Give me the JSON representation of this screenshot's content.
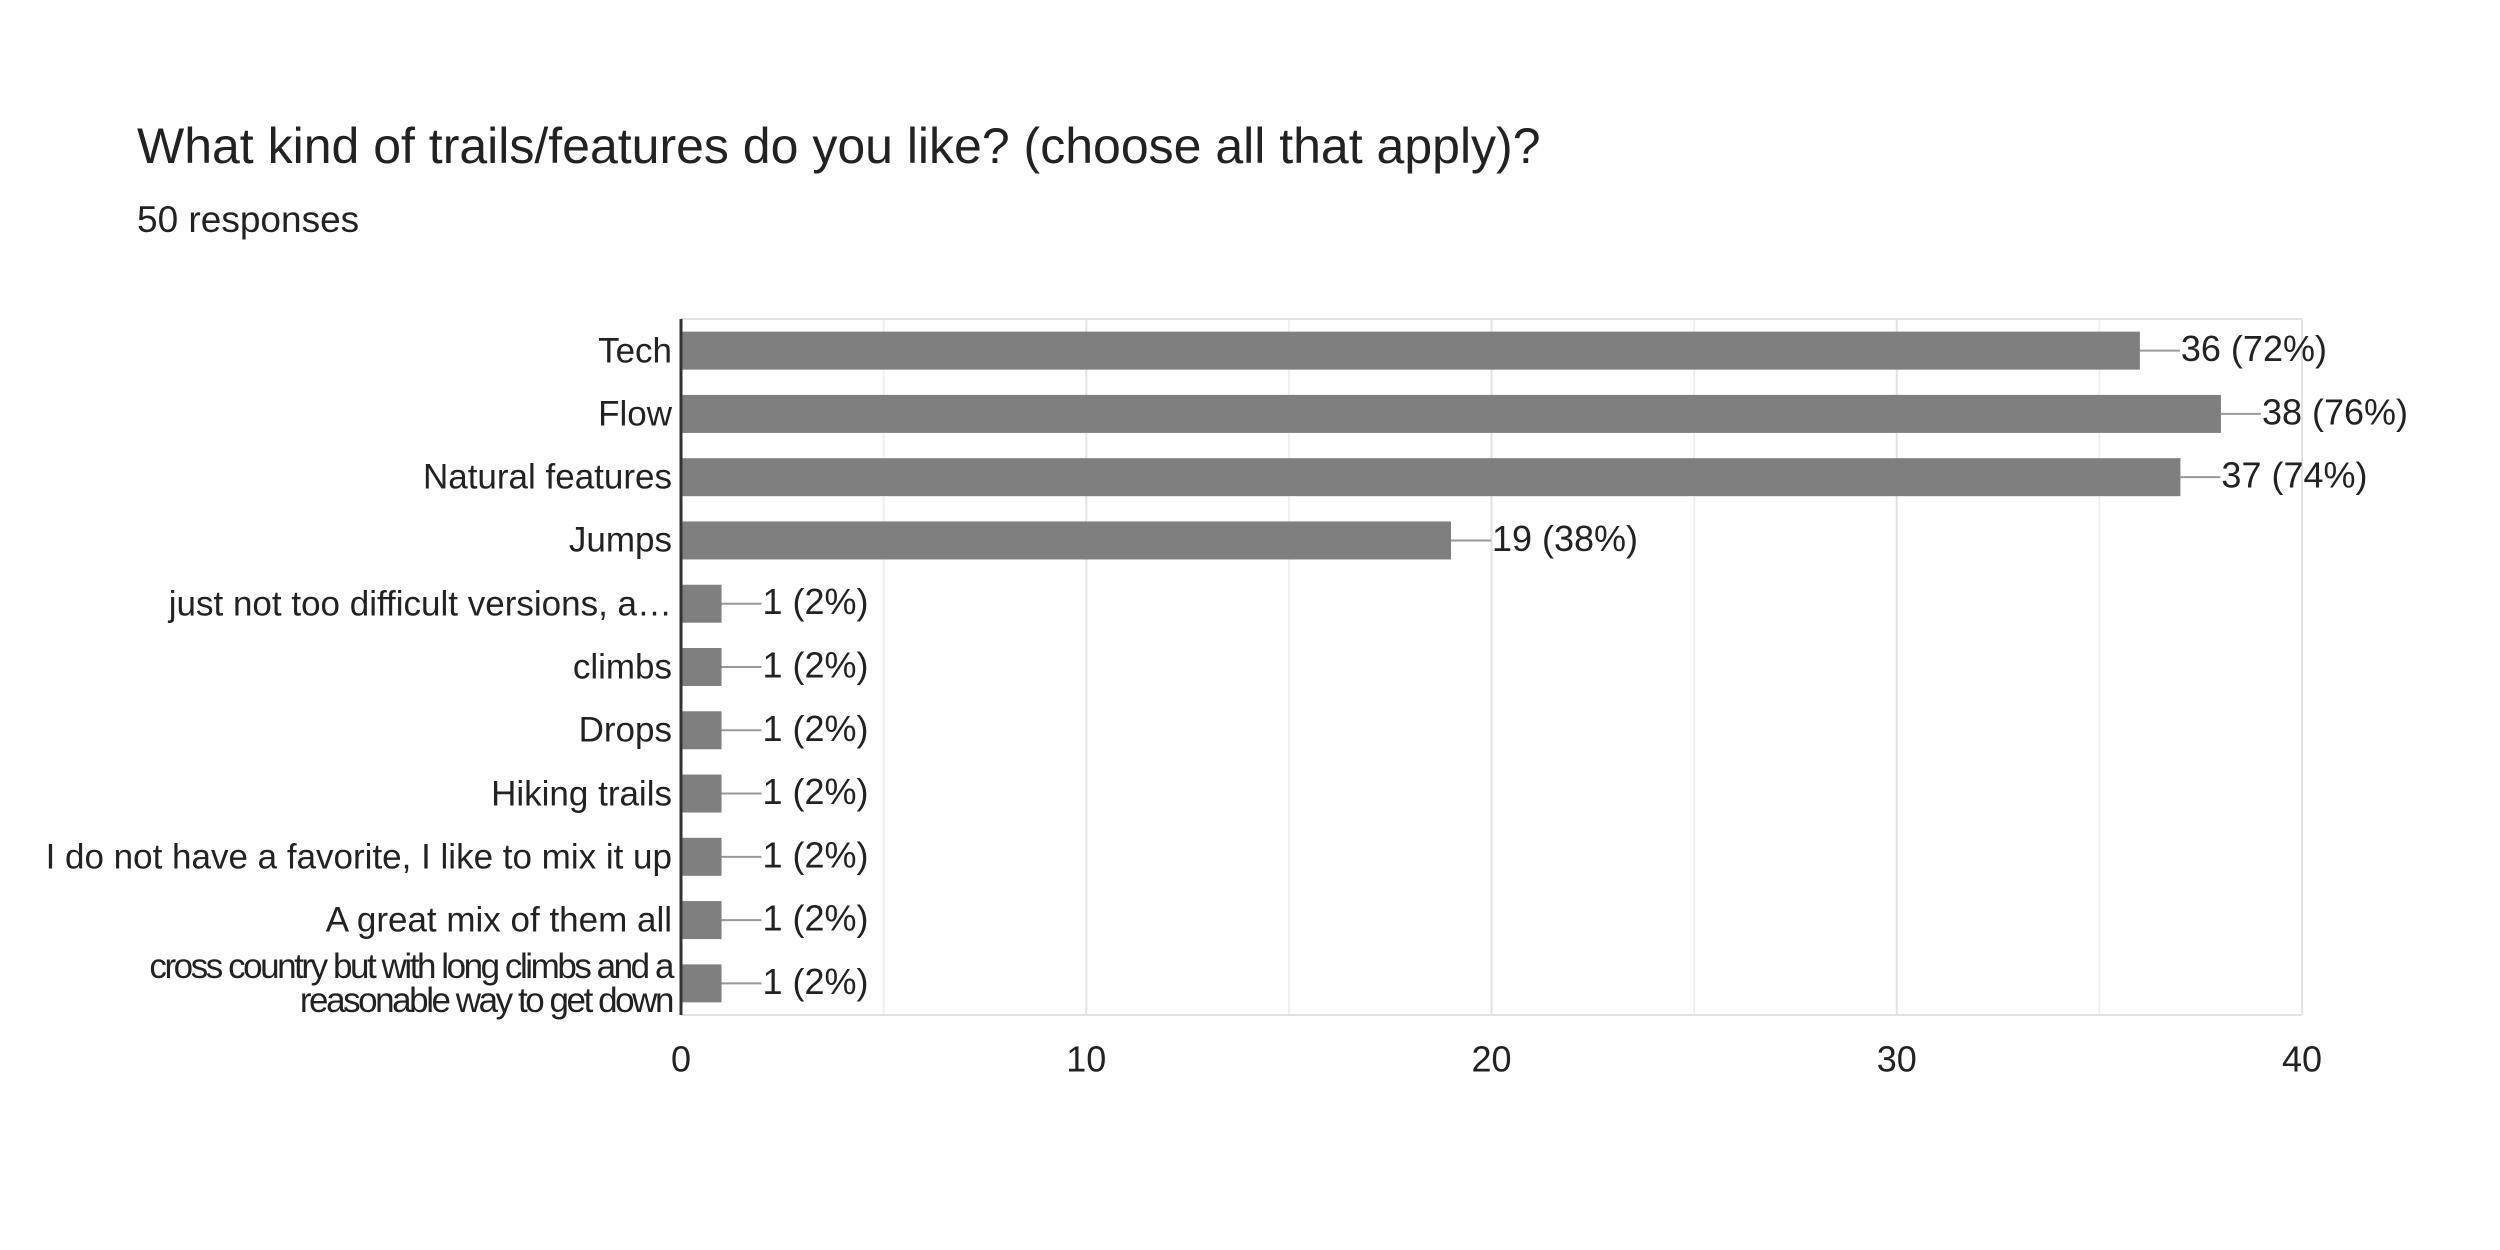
{
  "chart_data": {
    "type": "bar",
    "orientation": "horizontal",
    "title": "What kind of trails/features do you like? (choose all that apply)?",
    "subtitle": "50 responses",
    "categories": [
      "Tech",
      "Flow",
      "Natural features",
      "Jumps",
      "just not too difficult versions, a…",
      "climbs",
      "Drops",
      "Hiking trails",
      "I do not have a favorite, I like to mix it up",
      "A great mix of them all",
      "cross country but with long climbs and a reasonable way to get down"
    ],
    "values": [
      36,
      38,
      37,
      19,
      1,
      1,
      1,
      1,
      1,
      1,
      1
    ],
    "value_labels": [
      "36 (72%)",
      "38 (76%)",
      "37 (74%)",
      "19 (38%)",
      "1 (2%)",
      "1 (2%)",
      "1 (2%)",
      "1 (2%)",
      "1 (2%)",
      "1 (2%)",
      "1 (2%)"
    ],
    "color": "#7f7f7f",
    "xlim": [
      0,
      40
    ],
    "xticks": [
      0,
      10,
      20,
      30,
      40
    ],
    "minor_xticks": [
      5,
      15,
      25,
      35
    ],
    "grid": true
  }
}
